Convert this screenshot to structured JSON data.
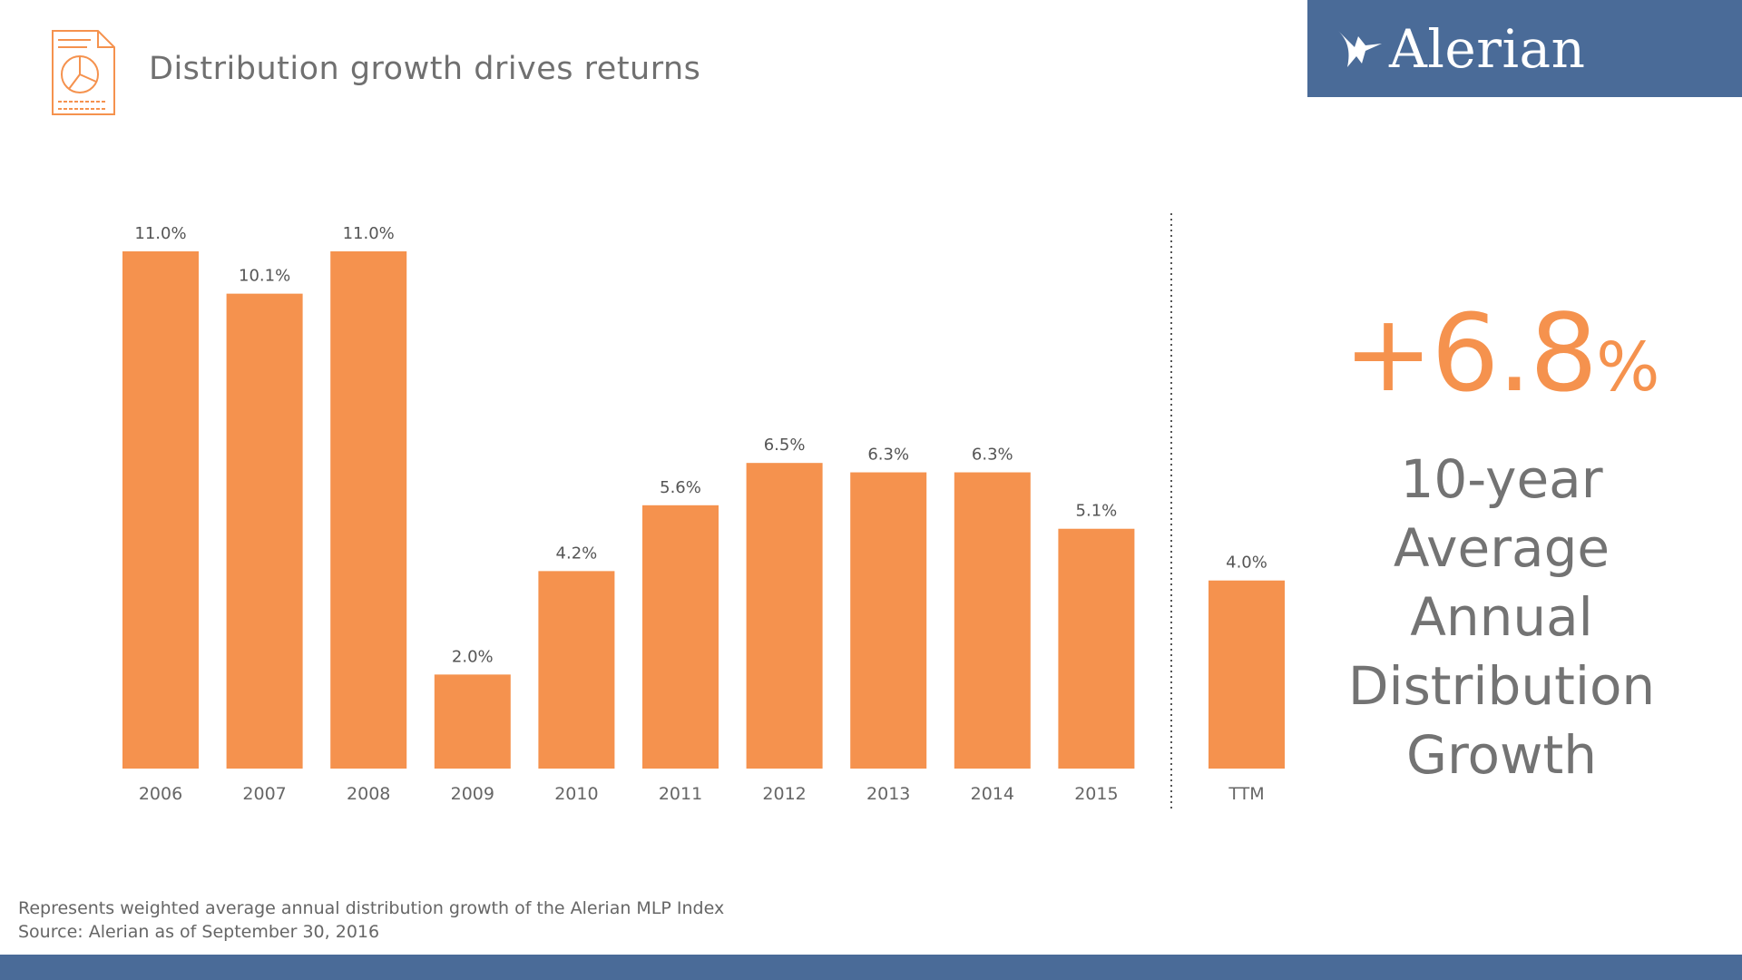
{
  "header": {
    "title": "Distribution growth drives returns",
    "logo_text": "Alerian",
    "doc_icon": "document-pie-chart-icon",
    "logo_icon": "alerian-bird-logo-icon"
  },
  "colors": {
    "bar": "#f5924e",
    "brand_blue": "#4a6b98",
    "text": "#666666"
  },
  "chart_data": {
    "type": "bar",
    "categories": [
      "2006",
      "2007",
      "2008",
      "2009",
      "2010",
      "2011",
      "2012",
      "2013",
      "2014",
      "2015",
      "TTM"
    ],
    "values": [
      11.0,
      10.1,
      11.0,
      2.0,
      4.2,
      5.6,
      6.5,
      6.3,
      6.3,
      5.1,
      4.0
    ],
    "value_labels": [
      "11.0%",
      "10.1%",
      "11.0%",
      "2.0%",
      "4.2%",
      "5.6%",
      "6.5%",
      "6.3%",
      "6.3%",
      "5.1%",
      "4.0%"
    ],
    "title": "",
    "xlabel": "",
    "ylabel": "",
    "ylim": [
      0,
      11.6
    ],
    "grid": false,
    "divider_before": "TTM"
  },
  "stat": {
    "value": "+6.8",
    "unit": "%",
    "label": "10-year\nAverage\nAnnual\nDistribution\nGrowth"
  },
  "footnote": {
    "line1": "Represents weighted average annual distribution growth of the Alerian MLP Index",
    "line2": "Source: Alerian as of September 30, 2016"
  }
}
